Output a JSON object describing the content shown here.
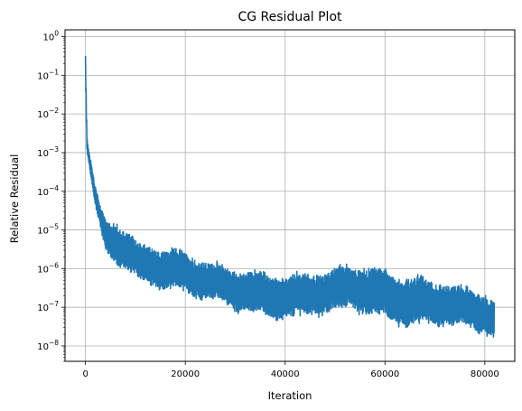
{
  "chart_data": {
    "type": "line",
    "title": "CG Residual Plot",
    "xlabel": "Iteration",
    "ylabel": "Relative Residual",
    "xlim": [
      -4100,
      86000
    ],
    "ylim": [
      4e-09,
      1.5
    ],
    "yscale": "log",
    "grid": true,
    "legend": "none",
    "series_color": "#1f77b4",
    "x_ticks": [
      {
        "value": 0,
        "label": "0"
      },
      {
        "value": 20000,
        "label": "20000"
      },
      {
        "value": 40000,
        "label": "40000"
      },
      {
        "value": 60000,
        "label": "60000"
      },
      {
        "value": 80000,
        "label": "80000"
      }
    ],
    "y_ticks": [
      {
        "exp": 0,
        "base": "10",
        "power": "0"
      },
      {
        "exp": -1,
        "base": "10",
        "power": "−1"
      },
      {
        "exp": -2,
        "base": "10",
        "power": "−2"
      },
      {
        "exp": -3,
        "base": "10",
        "power": "−3"
      },
      {
        "exp": -4,
        "base": "10",
        "power": "−4"
      },
      {
        "exp": -5,
        "base": "10",
        "power": "−5"
      },
      {
        "exp": -6,
        "base": "10",
        "power": "−6"
      },
      {
        "exp": -7,
        "base": "10",
        "power": "−7"
      },
      {
        "exp": -8,
        "base": "10",
        "power": "−8"
      }
    ],
    "envelope": {
      "iteration": [
        0,
        300,
        1000,
        2000,
        3000,
        4000,
        6000,
        8000,
        10000,
        15000,
        20000,
        25000,
        30000,
        35000,
        40000,
        45000,
        50000,
        53000,
        55000,
        60000,
        65000,
        70000,
        75000,
        80000,
        81900
      ],
      "upper": [
        0.5,
        0.003,
        0.0008,
        0.00015,
        5e-05,
        3e-05,
        2.5e-05,
        1.5e-05,
        7e-06,
        5e-06,
        4e-06,
        2e-06,
        1.5e-06,
        1.2e-06,
        1e-06,
        1.2e-06,
        1.5e-06,
        2e-06,
        2e-06,
        1.5e-06,
        1e-06,
        8e-07,
        5e-07,
        3.5e-07,
        2.5e-07
      ],
      "lower": [
        0.05,
        0.0008,
        0.0002,
        3e-05,
        8e-06,
        2e-06,
        1e-06,
        6e-07,
        4e-07,
        2e-07,
        1.5e-07,
        1e-07,
        6e-08,
        4e-08,
        3e-08,
        4e-08,
        5e-08,
        6e-08,
        5e-08,
        3e-08,
        2e-08,
        2e-08,
        2e-08,
        1.5e-08,
        9e-09
      ]
    }
  }
}
